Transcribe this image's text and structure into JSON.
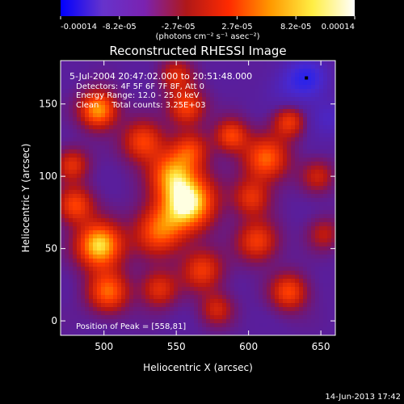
{
  "chart_data": {
    "type": "heatmap",
    "title": "Reconstructed RHESSI Image",
    "xlabel": "Heliocentric X (arcsec)",
    "ylabel": "Heliocentric Y (arcsec)",
    "xlim": [
      470,
      660
    ],
    "ylim": [
      -10,
      180
    ],
    "xticks": [
      500,
      550,
      600,
      650
    ],
    "yticks": [
      0,
      50,
      100,
      150
    ],
    "colorbar": {
      "ticks": [
        "-0.00014",
        "-8.2e-05",
        "-2.7e-05",
        "2.7e-05",
        "8.2e-05",
        "0.00014"
      ],
      "range": [
        -0.00014,
        0.00014
      ],
      "unit_label": "(photons cm⁻² s⁻¹ asec⁻²)",
      "colors": [
        "#0000ff",
        "#6633cc",
        "#7b22b0",
        "#b01818",
        "#ff2a00",
        "#ff9900",
        "#ffee44",
        "#ffffff"
      ]
    },
    "info_lines": [
      "5-Jul-2004 20:47:02.000 to 20:51:48.000",
      "Detectors: 4F 5F 6F 7F 8F, Att 0",
      "Energy Range: 12.0 - 25.0 keV",
      "Clean     Total counts: 3.25E+03"
    ],
    "peak_label": "Position of Peak = [558,81]",
    "peak": [
      558,
      81
    ],
    "blobs": [
      {
        "x": 558,
        "y": 82,
        "v": 1.0,
        "s": 13
      },
      {
        "x": 547,
        "y": 102,
        "v": 0.62,
        "s": 11
      },
      {
        "x": 538,
        "y": 62,
        "v": 0.6,
        "s": 12
      },
      {
        "x": 527,
        "y": 124,
        "v": 0.55,
        "s": 10
      },
      {
        "x": 560,
        "y": 118,
        "v": 0.45,
        "s": 9
      },
      {
        "x": 497,
        "y": 52,
        "v": 0.92,
        "s": 11
      },
      {
        "x": 480,
        "y": 80,
        "v": 0.55,
        "s": 9
      },
      {
        "x": 478,
        "y": 108,
        "v": 0.45,
        "s": 8
      },
      {
        "x": 503,
        "y": 20,
        "v": 0.62,
        "s": 10
      },
      {
        "x": 496,
        "y": 146,
        "v": 0.78,
        "s": 9
      },
      {
        "x": 557,
        "y": 148,
        "v": 0.55,
        "s": 9
      },
      {
        "x": 550,
        "y": 170,
        "v": 0.4,
        "s": 8
      },
      {
        "x": 588,
        "y": 128,
        "v": 0.55,
        "s": 8
      },
      {
        "x": 612,
        "y": 112,
        "v": 0.62,
        "s": 11
      },
      {
        "x": 602,
        "y": 85,
        "v": 0.45,
        "s": 9
      },
      {
        "x": 628,
        "y": 138,
        "v": 0.5,
        "s": 8
      },
      {
        "x": 606,
        "y": 55,
        "v": 0.52,
        "s": 10
      },
      {
        "x": 628,
        "y": 20,
        "v": 0.55,
        "s": 9
      },
      {
        "x": 568,
        "y": 35,
        "v": 0.5,
        "s": 10
      },
      {
        "x": 578,
        "y": 8,
        "v": 0.38,
        "s": 8
      },
      {
        "x": 538,
        "y": 22,
        "v": 0.45,
        "s": 9
      },
      {
        "x": 648,
        "y": 100,
        "v": 0.35,
        "s": 8
      },
      {
        "x": 652,
        "y": 60,
        "v": 0.32,
        "s": 8
      },
      {
        "x": 640,
        "y": 168,
        "v": -0.7,
        "s": 10
      },
      {
        "x": 655,
        "y": 140,
        "v": -0.35,
        "s": 9
      },
      {
        "x": 625,
        "y": 160,
        "v": -0.2,
        "s": 10
      }
    ]
  },
  "footer_date": "14-Jun-2013 17:42"
}
